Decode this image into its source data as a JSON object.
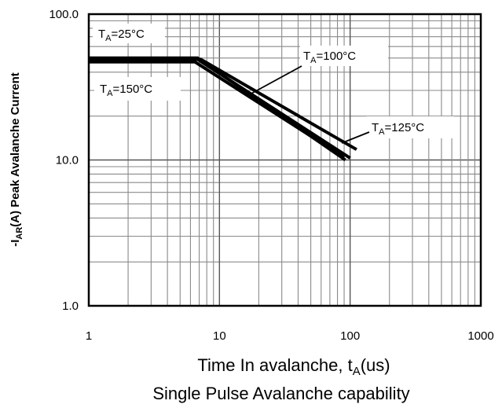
{
  "chart_data": {
    "type": "line",
    "x_scale": "log",
    "y_scale": "log",
    "xlim": [
      1,
      1000
    ],
    "ylim": [
      1.0,
      100.0
    ],
    "grid": true,
    "x_tick_labels": [
      "1",
      "10",
      "100",
      "1000"
    ],
    "y_tick_labels": [
      "1.0",
      "10.0",
      "100.0"
    ],
    "ylabel": {
      "prefix": "-I",
      "sub": "AR",
      "suffix": "(A) Peak Avalanche Current"
    },
    "xlabel": {
      "prefix": "Time In avalanche, t",
      "sub": "A",
      "suffix": "(us)"
    },
    "caption": "Single Pulse Avalanche capability",
    "series": [
      {
        "name": "TA=25°C",
        "label": {
          "prefix": "T",
          "sub": "A",
          "suffix": "=25°C"
        },
        "x": [
          1,
          6.8,
          92
        ],
        "y": [
          50,
          50,
          10.0
        ]
      },
      {
        "name": "TA=100°C",
        "label": {
          "prefix": "T",
          "sub": "A",
          "suffix": "=100°C"
        },
        "x": [
          1,
          6.8,
          100
        ],
        "y": [
          49,
          49,
          10.3
        ]
      },
      {
        "name": "TA=125°C",
        "label": {
          "prefix": "T",
          "sub": "A",
          "suffix": "=125°C"
        },
        "x": [
          1,
          7.2,
          112
        ],
        "y": [
          49,
          49,
          11.8
        ]
      },
      {
        "name": "TA=150°C",
        "label": {
          "prefix": "T",
          "sub": "A",
          "suffix": "=150°C"
        },
        "x": [
          1,
          6.5,
          90
        ],
        "y": [
          47,
          47,
          10.4
        ]
      }
    ],
    "annotations": [
      {
        "text": {
          "prefix": "T",
          "sub": "A",
          "suffix": "=25°C"
        }
      },
      {
        "text": {
          "prefix": "T",
          "sub": "A",
          "suffix": "=100°C"
        }
      },
      {
        "text": {
          "prefix": "T",
          "sub": "A",
          "suffix": "=150°C"
        }
      },
      {
        "text": {
          "prefix": "T",
          "sub": "A",
          "suffix": "=125°C"
        }
      }
    ]
  }
}
